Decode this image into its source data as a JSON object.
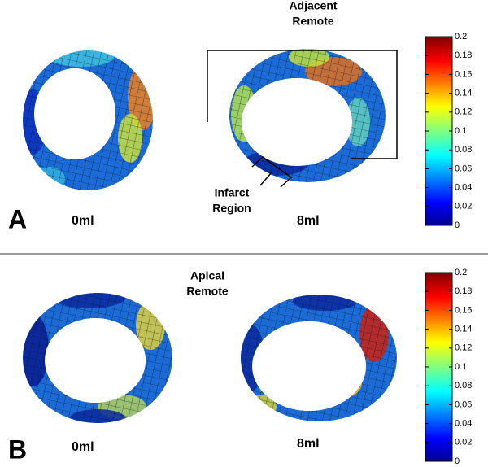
{
  "panels": [
    {
      "letter": "A",
      "left_label": "0ml",
      "right_label": "8ml",
      "annotations": [
        [
          "Adjacent",
          "Remote"
        ],
        [
          "Infarct",
          "Region"
        ]
      ],
      "colorbar": {
        "lim": [
          0,
          0.2
        ],
        "ticks": [
          0,
          0.02,
          0.04,
          0.06,
          0.08,
          0.1,
          0.12,
          0.14,
          0.16,
          0.18,
          0.2
        ]
      }
    },
    {
      "letter": "B",
      "left_label": "0ml",
      "right_label": "8ml",
      "annotations": [
        [
          "Apical",
          "Remote"
        ]
      ],
      "colorbar": {
        "lim": [
          0,
          0.2
        ],
        "ticks": [
          0,
          0.02,
          0.04,
          0.06,
          0.08,
          0.1,
          0.12,
          0.14,
          0.16,
          0.18,
          0.2
        ]
      }
    }
  ]
}
